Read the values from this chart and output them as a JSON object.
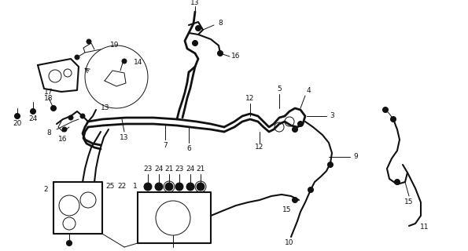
{
  "bg_color": "#ffffff",
  "line_color": "#111111",
  "figsize": [
    5.95,
    3.2
  ],
  "dpi": 100,
  "lw_main": 1.5,
  "lw_thin": 0.7,
  "fs": 6.5
}
